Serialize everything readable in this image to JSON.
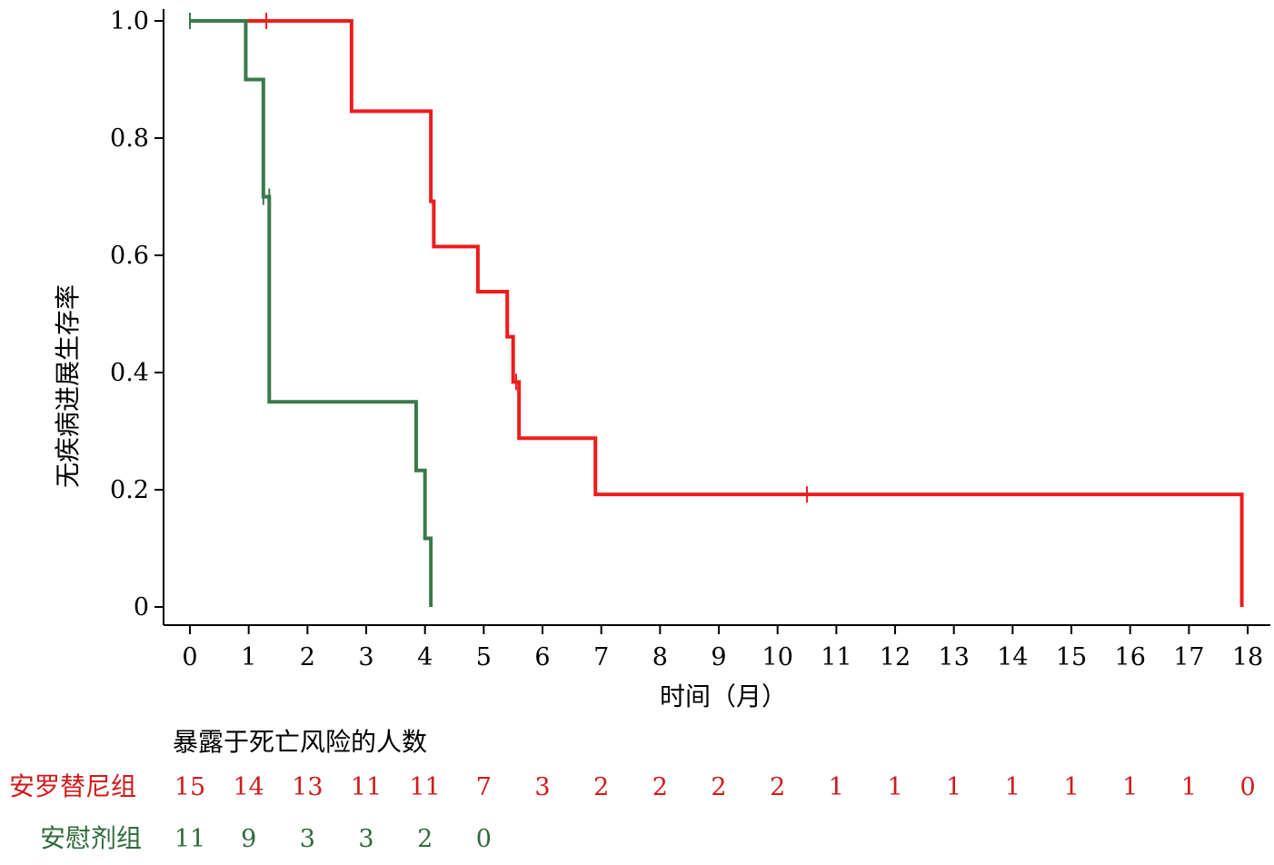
{
  "chart_data": {
    "type": "line",
    "subtype": "kaplan-meier-step",
    "xlabel": "时间（月）",
    "ylabel": "无疾病进展生存率",
    "xlim": [
      0,
      18
    ],
    "ylim": [
      0,
      1.0
    ],
    "x_ticks": [
      "0",
      "1",
      "2",
      "3",
      "4",
      "5",
      "6",
      "7",
      "8",
      "9",
      "10",
      "11",
      "12",
      "13",
      "14",
      "15",
      "16",
      "17",
      "18"
    ],
    "y_ticks": [
      {
        "value": 0,
        "label": "0"
      },
      {
        "value": 0.2,
        "label": "0.2"
      },
      {
        "value": 0.4,
        "label": "0.4"
      },
      {
        "value": 0.6,
        "label": "0.6"
      },
      {
        "value": 0.8,
        "label": "0.8"
      },
      {
        "value": 1.0,
        "label": "1.0"
      }
    ],
    "grid": false,
    "series": [
      {
        "name": "安罗替尼组",
        "color": "#ee1c1c",
        "steps": [
          {
            "x": 0,
            "y": 1.0
          },
          {
            "x": 2.75,
            "y": 0.846
          },
          {
            "x": 4.1,
            "y": 0.692
          },
          {
            "x": 4.15,
            "y": 0.615
          },
          {
            "x": 4.9,
            "y": 0.538
          },
          {
            "x": 5.4,
            "y": 0.461
          },
          {
            "x": 5.5,
            "y": 0.384
          },
          {
            "x": 5.6,
            "y": 0.288
          },
          {
            "x": 6.9,
            "y": 0.192
          },
          {
            "x": 17.9,
            "y": 0.0
          }
        ],
        "end_x": 17.9,
        "censored": [
          {
            "x": 1.3,
            "y": 1.0
          },
          {
            "x": 5.55,
            "y": 0.384
          },
          {
            "x": 10.5,
            "y": 0.192
          }
        ]
      },
      {
        "name": "安慰剂组",
        "color": "#3a7a4a",
        "steps": [
          {
            "x": 0,
            "y": 1.0
          },
          {
            "x": 0.95,
            "y": 0.9
          },
          {
            "x": 1.25,
            "y": 0.7
          },
          {
            "x": 1.35,
            "y": 0.35
          },
          {
            "x": 3.85,
            "y": 0.233
          },
          {
            "x": 4.0,
            "y": 0.117
          },
          {
            "x": 4.1,
            "y": 0.0
          }
        ],
        "end_x": 4.1,
        "censored": [
          {
            "x": 0.0,
            "y": 1.0
          },
          {
            "x": 1.25,
            "y": 0.7
          },
          {
            "x": 1.35,
            "y": 0.7
          }
        ]
      }
    ],
    "risk_table": {
      "title": "暴露于死亡风险的人数",
      "rows": [
        {
          "label": "安罗替尼组",
          "color": "#d11a1a",
          "counts": [
            "15",
            "14",
            "13",
            "11",
            "11",
            "7",
            "3",
            "2",
            "2",
            "2",
            "2",
            "1",
            "1",
            "1",
            "1",
            "1",
            "1",
            "1",
            "0"
          ]
        },
        {
          "label": "安慰剂组",
          "color": "#2f6b3c",
          "counts": [
            "11",
            "9",
            "3",
            "3",
            "2",
            "0"
          ]
        }
      ]
    }
  }
}
